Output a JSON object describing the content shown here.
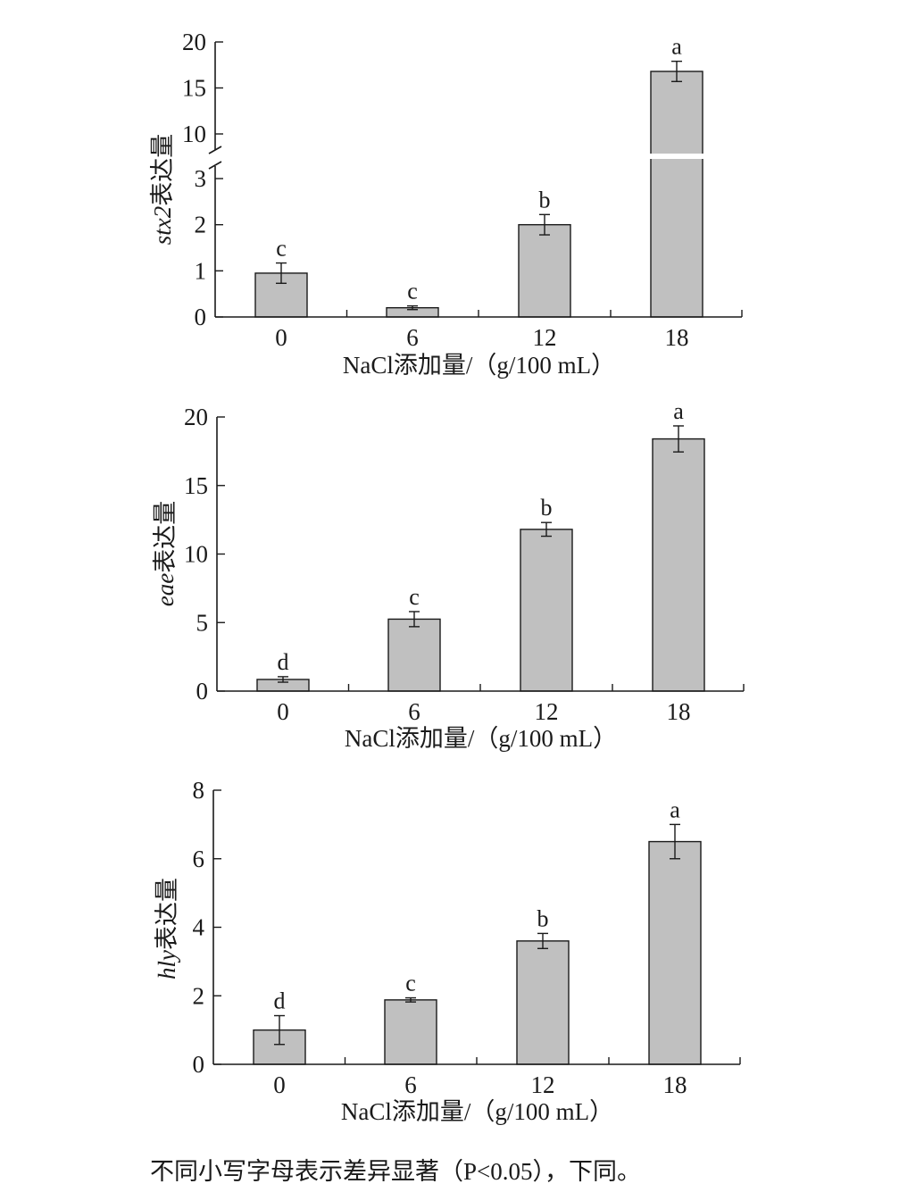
{
  "chart_data": [
    {
      "type": "bar",
      "gene": "stx2",
      "ylabel_suffix": "表达量",
      "xlabel": "NaCl添加量/（g/100 mL）",
      "categories": [
        "0",
        "6",
        "12",
        "18"
      ],
      "values": [
        0.95,
        0.2,
        2.0,
        16.8
      ],
      "errors": [
        0.22,
        0.04,
        0.22,
        1.1
      ],
      "letters": [
        "c",
        "c",
        "b",
        "a"
      ],
      "broken_axis": true,
      "lower_range": [
        0,
        3
      ],
      "upper_range": [
        10,
        20
      ],
      "lower_ticks": [
        "0",
        "1",
        "2",
        "3"
      ],
      "upper_ticks": [
        "10",
        "15",
        "20"
      ],
      "bar_color": "#c0c0c0"
    },
    {
      "type": "bar",
      "gene": "eae",
      "ylabel_suffix": "表达量",
      "xlabel": "NaCl添加量/（g/100 mL）",
      "categories": [
        "0",
        "6",
        "12",
        "18"
      ],
      "values": [
        0.85,
        5.25,
        11.8,
        18.4
      ],
      "errors": [
        0.2,
        0.55,
        0.5,
        0.95
      ],
      "letters": [
        "d",
        "c",
        "b",
        "a"
      ],
      "ylim": [
        0,
        20
      ],
      "yticks": [
        "0",
        "5",
        "10",
        "15",
        "20"
      ],
      "bar_color": "#c0c0c0"
    },
    {
      "type": "bar",
      "gene": "hly",
      "ylabel_suffix": "表达量",
      "xlabel": "NaCl添加量/（g/100 mL）",
      "categories": [
        "0",
        "6",
        "12",
        "18"
      ],
      "values": [
        1.0,
        1.88,
        3.6,
        6.5
      ],
      "errors": [
        0.42,
        0.06,
        0.22,
        0.5
      ],
      "letters": [
        "d",
        "c",
        "b",
        "a"
      ],
      "ylim": [
        0,
        8
      ],
      "yticks": [
        "0",
        "2",
        "4",
        "6",
        "8"
      ],
      "bar_color": "#c0c0c0"
    }
  ],
  "caption": "不同小写字母表示差异显著（P<0.05），下同。"
}
